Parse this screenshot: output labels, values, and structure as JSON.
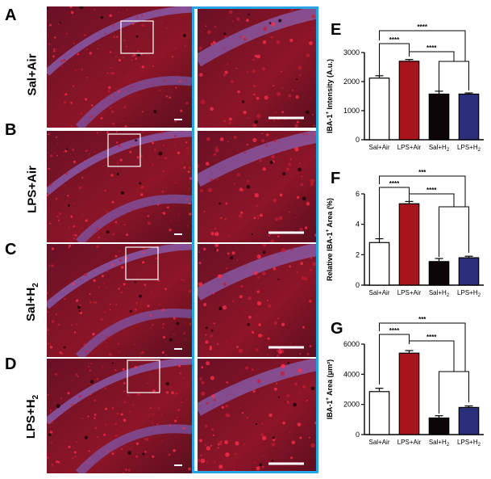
{
  "panel_letters": [
    "A",
    "B",
    "C",
    "D",
    "E",
    "F",
    "G"
  ],
  "rows": [
    {
      "letter": "A",
      "main": "Sal+Air",
      "sub": ""
    },
    {
      "letter": "B",
      "main": "LPS+Air",
      "sub": ""
    },
    {
      "letter": "C",
      "main": "Sal+H",
      "sub": "2"
    },
    {
      "letter": "D",
      "main": "LPS+H",
      "sub": "2"
    }
  ],
  "colors": {
    "sal_air": "#ffffff",
    "lps_air": "#a8141c",
    "sal_h2": "#0c0606",
    "lps_h2": "#2b2e7a",
    "zoom_frame": "#2aa3e6"
  },
  "chart_data": [
    {
      "letter": "E",
      "type": "bar",
      "categories": [
        "Sal+Air",
        "LPS+Air",
        "Sal+H2",
        "LPS+H2"
      ],
      "values": [
        2120,
        2700,
        1570,
        1570
      ],
      "errors": [
        80,
        60,
        100,
        40
      ],
      "ylabel_main": "IBA-1",
      "ylabel_sup": "+",
      "ylabel_rest": " Intensity (A.u.)",
      "ylim": [
        0,
        3000
      ],
      "yticks": [
        "0",
        "1000",
        "2000",
        "3000"
      ],
      "significance": [
        "****",
        "****",
        "****"
      ]
    },
    {
      "letter": "F",
      "type": "bar",
      "categories": [
        "Sal+Air",
        "LPS+Air",
        "Sal+H2",
        "LPS+H2"
      ],
      "values": [
        2.8,
        5.35,
        1.55,
        1.8
      ],
      "errors": [
        0.25,
        0.15,
        0.2,
        0.1
      ],
      "ylabel_main": "Relative IBA-1",
      "ylabel_sup": "+",
      "ylabel_rest": " Area (%)",
      "ylim": [
        0,
        6
      ],
      "yticks": [
        "0",
        "2",
        "4",
        "6"
      ],
      "significance": [
        "***",
        "****",
        "****"
      ]
    },
    {
      "letter": "G",
      "type": "bar",
      "categories": [
        "Sal+Air",
        "LPS+Air",
        "Sal+H2",
        "LPS+H2"
      ],
      "values": [
        2850,
        5400,
        1100,
        1800
      ],
      "errors": [
        220,
        170,
        150,
        100
      ],
      "ylabel_main": "IBA-1",
      "ylabel_sup": "+",
      "ylabel_rest": " Area (μm²)",
      "ylim": [
        0,
        6000
      ],
      "yticks": [
        "0",
        "2000",
        "4000",
        "6000"
      ],
      "significance": [
        "***",
        "****",
        "****"
      ]
    }
  ]
}
